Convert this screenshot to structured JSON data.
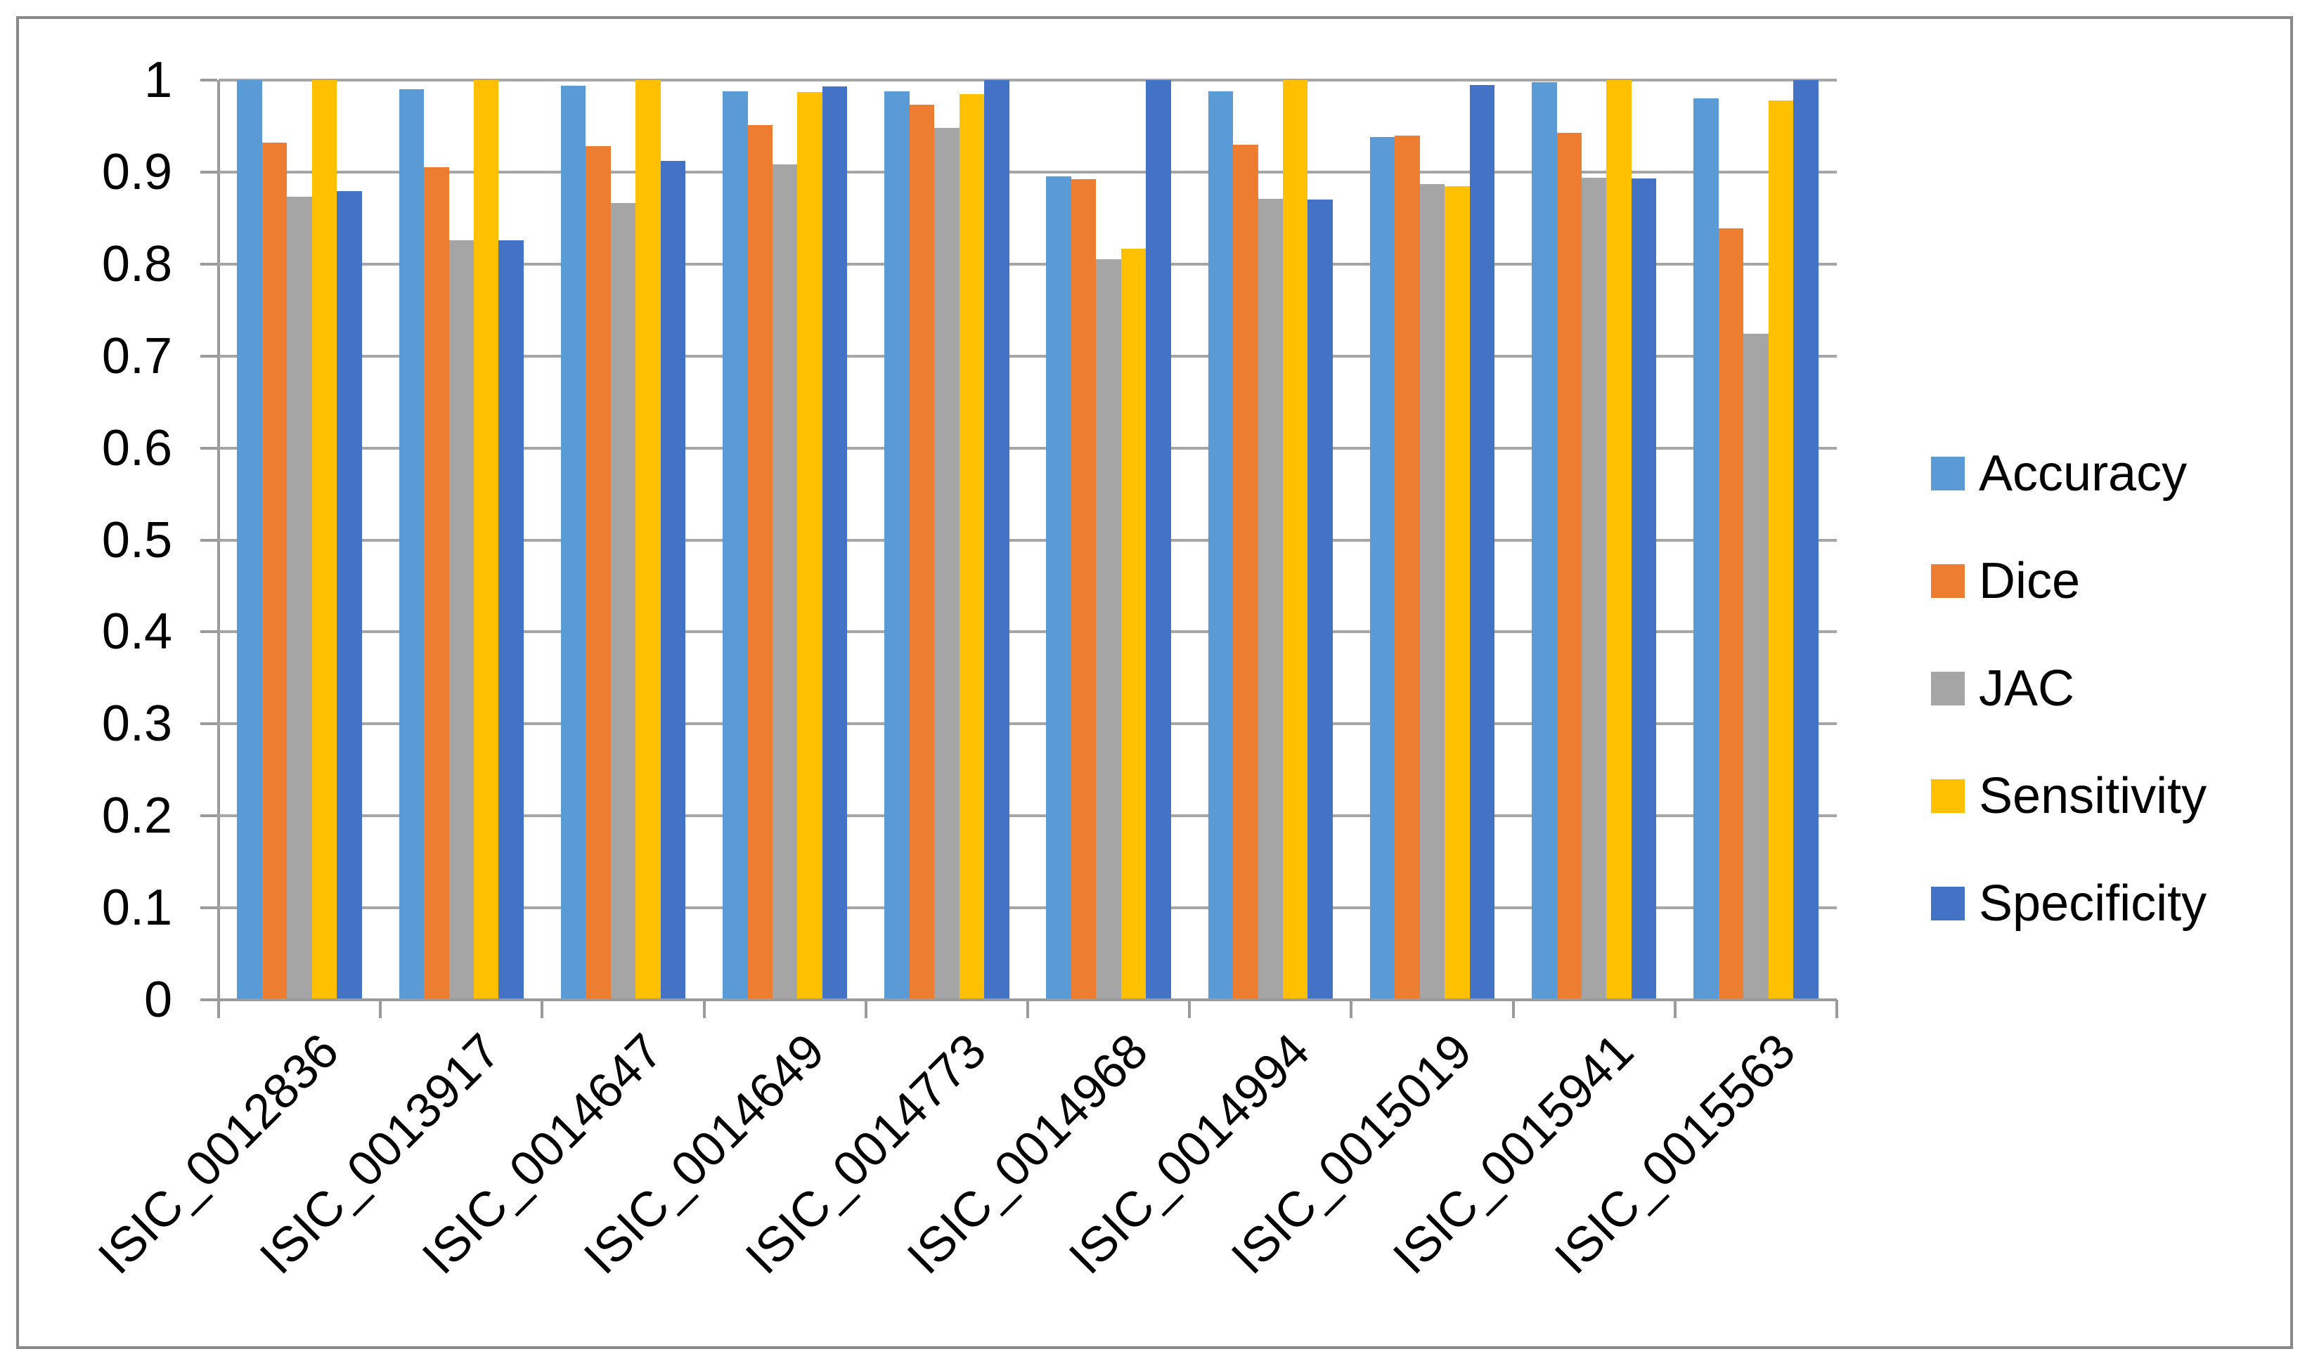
{
  "figure": {
    "background": "#ffffff",
    "border_color": "#898989"
  },
  "chart_data": {
    "type": "bar",
    "title": "",
    "xlabel": "",
    "ylabel": "",
    "ylim": [
      0,
      1
    ],
    "ytick_step": 0.1,
    "ytick_labels": [
      "0",
      "0.1",
      "0.2",
      "0.3",
      "0.4",
      "0.5",
      "0.6",
      "0.7",
      "0.8",
      "0.9",
      "1"
    ],
    "grid": "horizontal",
    "gridline_color": "#a6a6a6",
    "axis_color": "#9b9b9b",
    "legend_position": "right",
    "categories": [
      "ISIC_0012836",
      "ISIC_0013917",
      "ISIC_0014647",
      "ISIC_0014649",
      "ISIC_0014773",
      "ISIC_0014968",
      "ISIC_0014994",
      "ISIC_0015019",
      "ISIC_0015941",
      "ISIC_0015563"
    ],
    "series": [
      {
        "name": "Accuracy",
        "color": "#5B9BD5",
        "values": [
          1.0,
          0.99,
          0.994,
          0.988,
          0.988,
          0.895,
          0.988,
          0.938,
          0.998,
          0.98
        ]
      },
      {
        "name": "Dice",
        "color": "#ED7D31",
        "values": [
          0.932,
          0.905,
          0.928,
          0.951,
          0.973,
          0.892,
          0.93,
          0.94,
          0.943,
          0.839
        ]
      },
      {
        "name": "JAC",
        "color": "#A5A5A5",
        "values": [
          0.873,
          0.826,
          0.866,
          0.908,
          0.948,
          0.805,
          0.871,
          0.887,
          0.894,
          0.724
        ]
      },
      {
        "name": "Sensitivity",
        "color": "#FFC000",
        "values": [
          1.0,
          1.0,
          1.0,
          0.987,
          0.985,
          0.817,
          1.0,
          0.885,
          1.0,
          0.978
        ]
      },
      {
        "name": "Specificity",
        "color": "#4472C4",
        "values": [
          0.879,
          0.826,
          0.912,
          0.993,
          1.0,
          1.0,
          0.87,
          0.995,
          0.893,
          1.0
        ]
      }
    ]
  }
}
